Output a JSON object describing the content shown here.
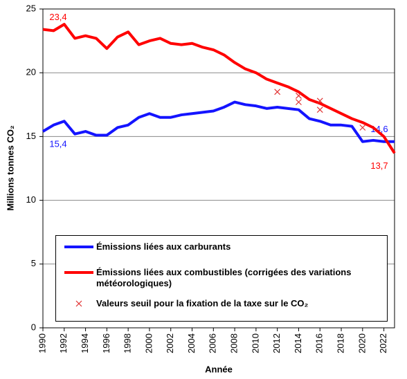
{
  "chart_data": {
    "type": "line",
    "ylabel": "Millions tonnes CO₂",
    "xlabel": "Année",
    "x": [
      1990,
      1991,
      1992,
      1993,
      1994,
      1995,
      1996,
      1997,
      1998,
      1999,
      2000,
      2001,
      2002,
      2003,
      2004,
      2005,
      2006,
      2007,
      2008,
      2009,
      2010,
      2011,
      2012,
      2013,
      2014,
      2015,
      2016,
      2017,
      2018,
      2019,
      2020,
      2021,
      2022,
      2023
    ],
    "xlim": [
      1990,
      2023
    ],
    "xticks": [
      1990,
      1992,
      1994,
      1996,
      1998,
      2000,
      2002,
      2004,
      2006,
      2008,
      2010,
      2012,
      2014,
      2016,
      2018,
      2020,
      2022
    ],
    "ylim": [
      0,
      25
    ],
    "yticks": [
      0,
      5,
      10,
      15,
      20,
      25
    ],
    "grid": true,
    "series": [
      {
        "name": "Émissions liées aux carburants",
        "color": "#1414ff",
        "values": [
          15.4,
          15.9,
          16.2,
          15.2,
          15.4,
          15.1,
          15.1,
          15.7,
          15.9,
          16.5,
          16.8,
          16.5,
          16.5,
          16.7,
          16.8,
          16.9,
          17.0,
          17.3,
          17.7,
          17.5,
          17.4,
          17.2,
          17.3,
          17.2,
          17.1,
          16.4,
          16.2,
          15.9,
          15.9,
          15.8,
          14.6,
          14.7,
          14.6,
          14.6
        ],
        "value_labels": [
          "15,4",
          null,
          null,
          null,
          null,
          null,
          null,
          null,
          null,
          null,
          null,
          null,
          null,
          null,
          null,
          null,
          null,
          null,
          null,
          null,
          null,
          null,
          null,
          null,
          null,
          null,
          null,
          null,
          null,
          null,
          null,
          null,
          null,
          "14,6"
        ]
      },
      {
        "name": "Émissions liées aux combustibles (corrigées des variations météorologiques)",
        "color": "#ff0000",
        "values": [
          23.4,
          23.3,
          23.8,
          22.7,
          22.9,
          22.7,
          21.9,
          22.8,
          23.2,
          22.2,
          22.5,
          22.7,
          22.3,
          22.2,
          22.3,
          22.0,
          21.8,
          21.4,
          20.8,
          20.3,
          20.0,
          19.5,
          19.2,
          18.9,
          18.5,
          17.9,
          17.6,
          17.2,
          16.8,
          16.4,
          16.1,
          15.7,
          15.0,
          13.7
        ],
        "value_labels": [
          "23,4",
          null,
          null,
          null,
          null,
          null,
          null,
          null,
          null,
          null,
          null,
          null,
          null,
          null,
          null,
          null,
          null,
          null,
          null,
          null,
          null,
          null,
          null,
          null,
          null,
          null,
          null,
          null,
          null,
          null,
          null,
          null,
          null,
          "13,7"
        ]
      },
      {
        "name": "Valeurs seuil pour la fixation de la taxe sur le CO₂",
        "color": "#e03030",
        "type": "scatter",
        "x": [
          2012,
          2014,
          2014,
          2016,
          2016,
          2020
        ],
        "values": [
          18.5,
          18.2,
          17.7,
          17.8,
          17.1,
          15.7
        ]
      }
    ]
  }
}
